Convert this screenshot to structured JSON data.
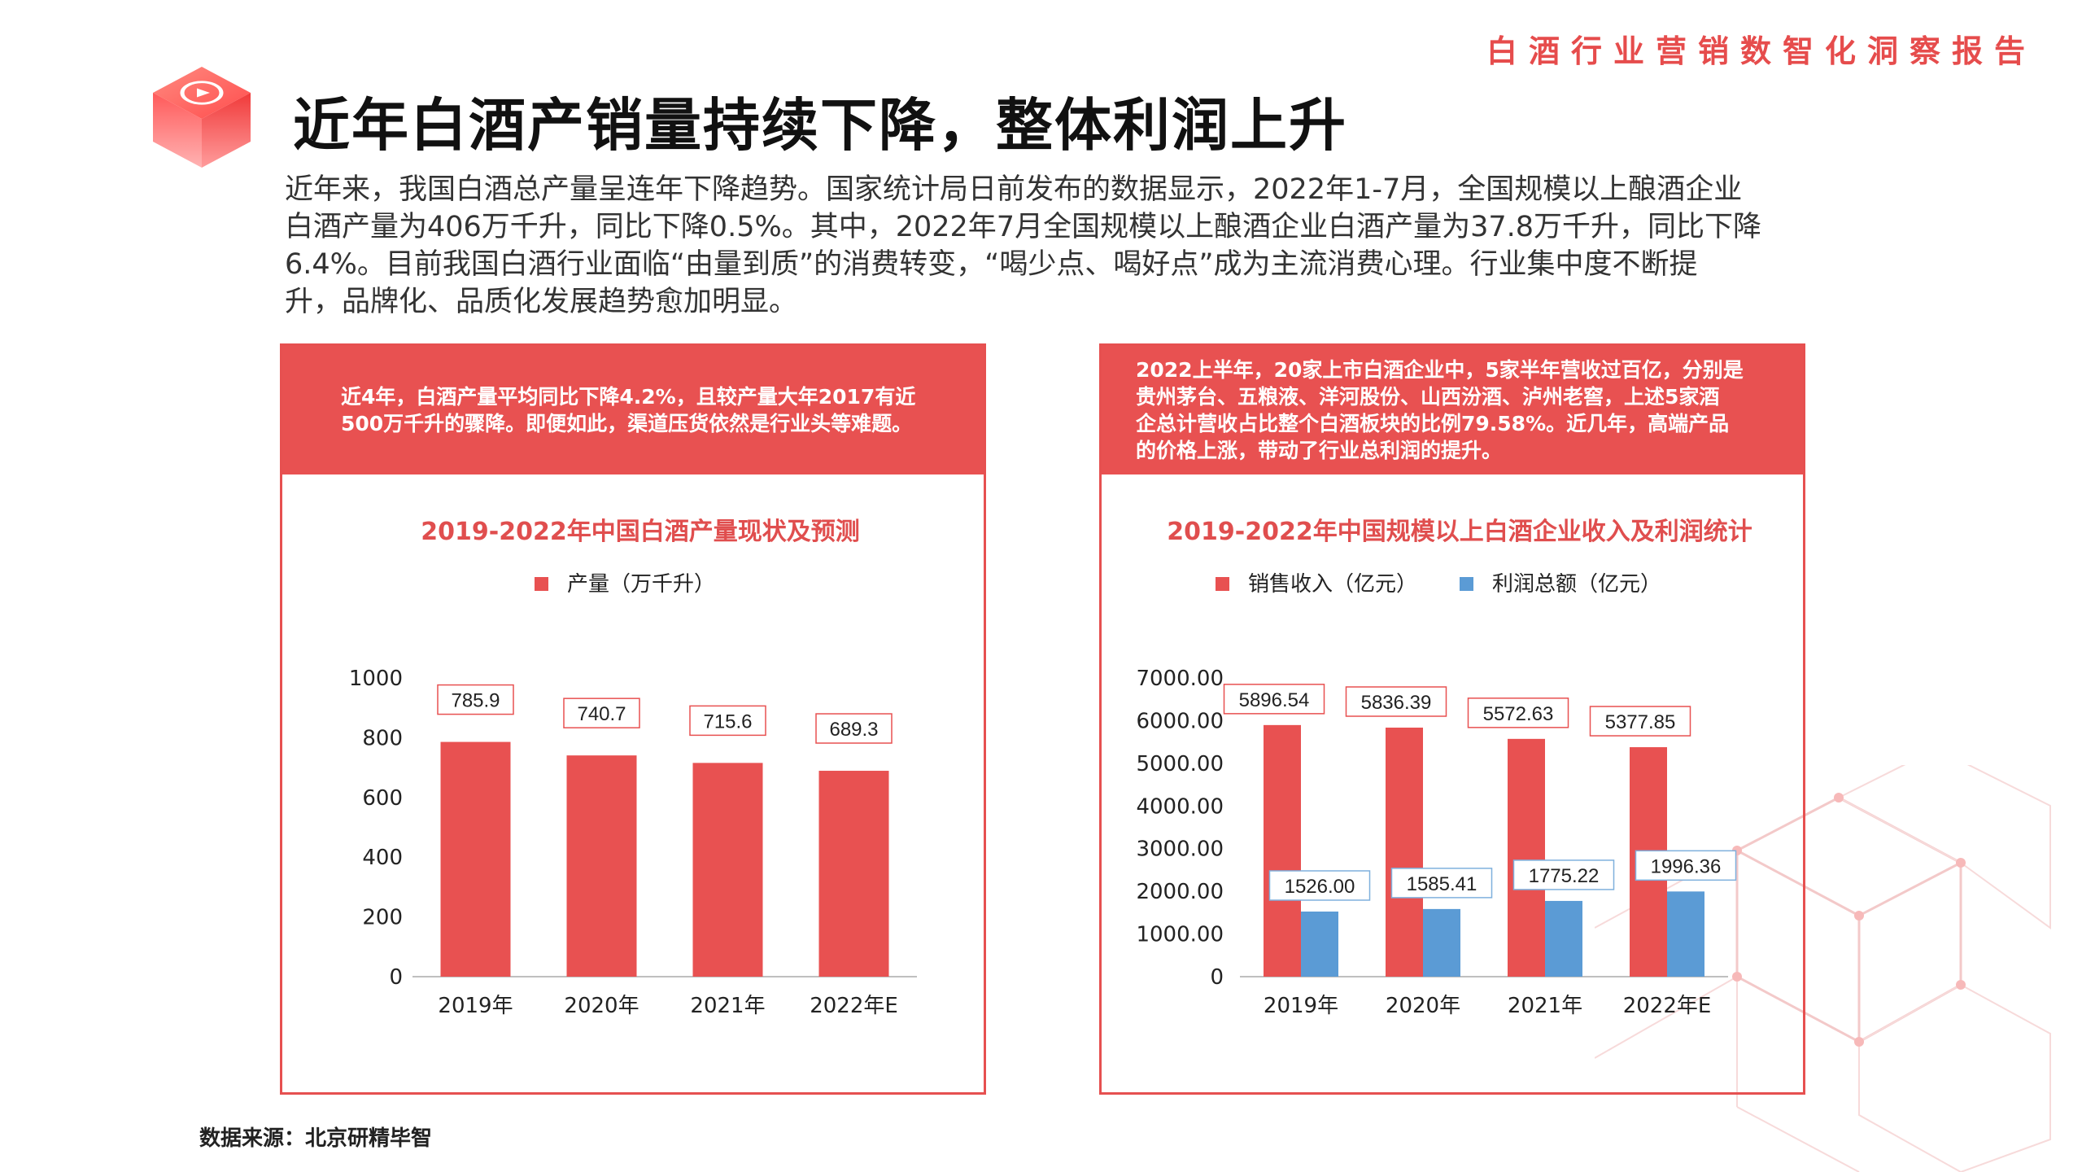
{
  "header": {
    "report_name": "白酒行业营销数智化洞察报告",
    "title": "近年白酒产销量持续下降，整体利润上升"
  },
  "intro": {
    "lines": [
      "近年来，我国白酒总产量呈连年下降趋势。国家统计局日前发布的数据显示，2022年1-7月，全国规模以上酿酒企业",
      "白酒产量为406万千升，同比下降0.5%。其中，2022年7月全国规模以上酿酒企业白酒产量为37.8万千升，同比下降",
      "6.4%。目前我国白酒行业面临“由量到质”的消费转变，“喝少点、喝好点”成为主流消费心理。行业集中度不断提",
      "升，品牌化、品质化发展趋势愈加明显。"
    ]
  },
  "left_panel": {
    "head_lines": [
      "近4年，白酒产量平均同比下降4.2%，且较产量大年2017有近",
      "500万千升的骤降。即便如此，渠道压货依然是行业头等难题。"
    ]
  },
  "right_panel": {
    "head_lines": [
      "2022上半年，20家上市白酒企业中，5家半年营收过百亿，分别是",
      "贵州茅台、五粮液、洋河股份、山西汾酒、泸州老窖，上述5家酒",
      "企总计营收占比整个白酒板块的比例79.58%。近几年，高端产品",
      "的价格上涨，带动了行业总利润的提升。"
    ]
  },
  "chart_data": [
    {
      "type": "bar",
      "title": "2019-2022年中国白酒产量现状及预测",
      "categories": [
        "2019年",
        "2020年",
        "2021年",
        "2022年E"
      ],
      "series": [
        {
          "name": "产量（万千升）",
          "values": [
            785.9,
            740.7,
            715.6,
            689.3
          ],
          "labels": [
            "785.9",
            "740.7",
            "715.6",
            "689.3"
          ],
          "color": "#e85151"
        }
      ],
      "yticks": [
        "0",
        "200",
        "400",
        "600",
        "800",
        "1000"
      ],
      "ylim": [
        0,
        1000
      ],
      "xlabel": "",
      "ylabel": "",
      "legend": "top-center",
      "grid": false
    },
    {
      "type": "bar",
      "title": "2019-2022年中国规模以上白酒企业收入及利润统计",
      "categories": [
        "2019年",
        "2020年",
        "2021年",
        "2022年E"
      ],
      "series": [
        {
          "name": "销售收入（亿元）",
          "values": [
            5896.54,
            5836.39,
            5572.63,
            5377.85
          ],
          "labels": [
            "5896.54",
            "5836.39",
            "5572.63",
            "5377.85"
          ],
          "color": "#e85151"
        },
        {
          "name": "利润总额（亿元）",
          "values": [
            1526.0,
            1585.41,
            1775.22,
            1996.36
          ],
          "labels": [
            "1526.00",
            "1585.41",
            "1775.22",
            "1996.36"
          ],
          "color": "#5b9bd5"
        }
      ],
      "yticks": [
        "0",
        "1000.00",
        "2000.00",
        "3000.00",
        "4000.00",
        "5000.00",
        "6000.00",
        "7000.00"
      ],
      "ylim": [
        0,
        7000
      ],
      "xlabel": "",
      "ylabel": "",
      "legend": "top-center",
      "grid": false
    }
  ],
  "footer": {
    "source": "数据来源：北京研精毕智"
  },
  "colors": {
    "accent": "#e85151",
    "blue": "#5b9bd5",
    "label_border_red": "#e85151",
    "label_border_blue": "#7fb0dd"
  }
}
